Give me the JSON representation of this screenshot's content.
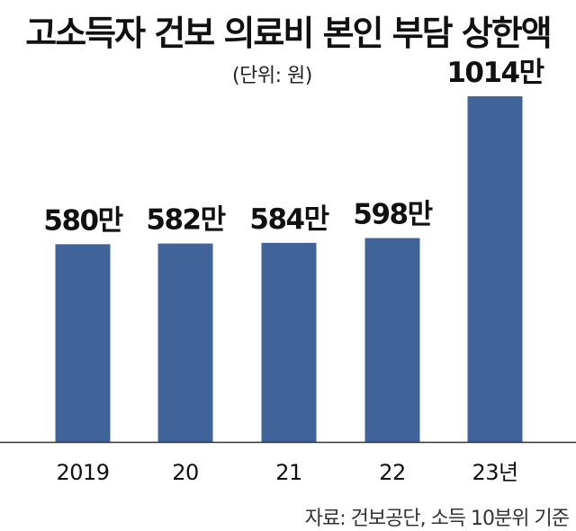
{
  "chart_data": {
    "type": "bar",
    "title": "고소득자 건보 의료비 본인 부담 상한액",
    "unit_note": "(단위: 원)",
    "source": "자료: 건보공단, 소득 10분위 기준",
    "categories": [
      "2019",
      "20",
      "21",
      "22",
      "23년"
    ],
    "values": [
      5800000,
      5820000,
      5840000,
      5980000,
      10140000
    ],
    "data_labels": [
      "580만",
      "582만",
      "584만",
      "598만",
      "1014만"
    ],
    "bar_color": "#40649a",
    "axis_color": "#333333",
    "ylim": [
      0,
      10800000
    ],
    "grid": false,
    "legend": false
  }
}
